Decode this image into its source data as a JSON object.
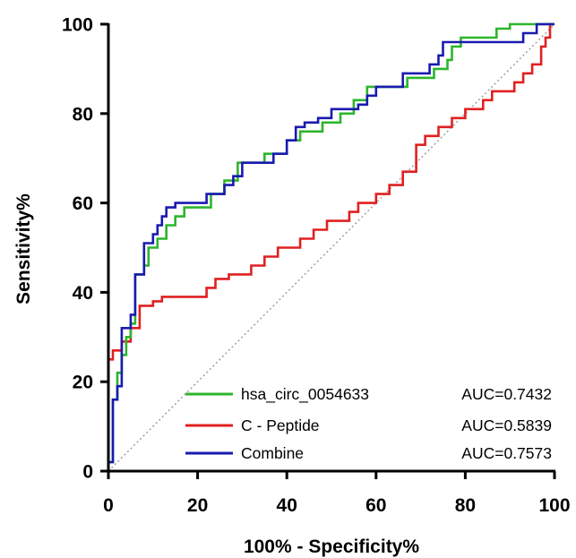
{
  "chart_data": {
    "type": "line",
    "xlabel": "100% - Specificity%",
    "ylabel": "Sensitivity%",
    "xlim": [
      0,
      100
    ],
    "ylim": [
      0,
      100
    ],
    "x_ticks": [
      "0",
      "20",
      "40",
      "60",
      "80",
      "100"
    ],
    "y_ticks": [
      "0",
      "20",
      "40",
      "60",
      "80",
      "100"
    ],
    "grid": false,
    "legend_position": "bottom-right",
    "reference_line": {
      "style": "dotted",
      "color": "#9a9a9a",
      "from": [
        0,
        0
      ],
      "to": [
        100,
        100
      ]
    },
    "series": [
      {
        "name": "hsa_circ_0054633",
        "auc_label": "AUC=0.7432",
        "color": "#2db52d",
        "points": [
          [
            0,
            0
          ],
          [
            0,
            2
          ],
          [
            1,
            2
          ],
          [
            1,
            16
          ],
          [
            2,
            16
          ],
          [
            2,
            22
          ],
          [
            3,
            22
          ],
          [
            3,
            26
          ],
          [
            4,
            26
          ],
          [
            4,
            30
          ],
          [
            5,
            30
          ],
          [
            5,
            33
          ],
          [
            6,
            33
          ],
          [
            6,
            44
          ],
          [
            8,
            44
          ],
          [
            8,
            46
          ],
          [
            9,
            46
          ],
          [
            9,
            50
          ],
          [
            11,
            50
          ],
          [
            11,
            52
          ],
          [
            13,
            52
          ],
          [
            13,
            55
          ],
          [
            15,
            55
          ],
          [
            15,
            57
          ],
          [
            17,
            57
          ],
          [
            17,
            59
          ],
          [
            23,
            59
          ],
          [
            23,
            62
          ],
          [
            26,
            62
          ],
          [
            26,
            65
          ],
          [
            29,
            65
          ],
          [
            29,
            69
          ],
          [
            35,
            69
          ],
          [
            35,
            71
          ],
          [
            40,
            71
          ],
          [
            40,
            74
          ],
          [
            43,
            74
          ],
          [
            43,
            76
          ],
          [
            48,
            76
          ],
          [
            48,
            78
          ],
          [
            52,
            78
          ],
          [
            52,
            80
          ],
          [
            55,
            80
          ],
          [
            55,
            83
          ],
          [
            58,
            83
          ],
          [
            58,
            86
          ],
          [
            67,
            86
          ],
          [
            67,
            88
          ],
          [
            73,
            88
          ],
          [
            73,
            90
          ],
          [
            76,
            90
          ],
          [
            76,
            92
          ],
          [
            77,
            92
          ],
          [
            77,
            95
          ],
          [
            79,
            95
          ],
          [
            79,
            97
          ],
          [
            87,
            97
          ],
          [
            87,
            99
          ],
          [
            90,
            99
          ],
          [
            90,
            100
          ],
          [
            100,
            100
          ]
        ]
      },
      {
        "name": "C - Peptide",
        "auc_label": "AUC=0.5839",
        "color": "#e02020",
        "points": [
          [
            0,
            0
          ],
          [
            0,
            25
          ],
          [
            1,
            25
          ],
          [
            1,
            27
          ],
          [
            3,
            27
          ],
          [
            3,
            29
          ],
          [
            5,
            29
          ],
          [
            5,
            32
          ],
          [
            7,
            32
          ],
          [
            7,
            37
          ],
          [
            10,
            37
          ],
          [
            10,
            38
          ],
          [
            12,
            38
          ],
          [
            12,
            39
          ],
          [
            22,
            39
          ],
          [
            22,
            41
          ],
          [
            24,
            41
          ],
          [
            24,
            43
          ],
          [
            27,
            43
          ],
          [
            27,
            44
          ],
          [
            32,
            44
          ],
          [
            32,
            46
          ],
          [
            35,
            46
          ],
          [
            35,
            48
          ],
          [
            38,
            48
          ],
          [
            38,
            50
          ],
          [
            43,
            50
          ],
          [
            43,
            52
          ],
          [
            46,
            52
          ],
          [
            46,
            54
          ],
          [
            49,
            54
          ],
          [
            49,
            56
          ],
          [
            54,
            56
          ],
          [
            54,
            58
          ],
          [
            56,
            58
          ],
          [
            56,
            60
          ],
          [
            60,
            60
          ],
          [
            60,
            62
          ],
          [
            63,
            62
          ],
          [
            63,
            64
          ],
          [
            66,
            64
          ],
          [
            66,
            67
          ],
          [
            69,
            67
          ],
          [
            69,
            73
          ],
          [
            71,
            73
          ],
          [
            71,
            75
          ],
          [
            74,
            75
          ],
          [
            74,
            77
          ],
          [
            77,
            77
          ],
          [
            77,
            79
          ],
          [
            80,
            79
          ],
          [
            80,
            81
          ],
          [
            84,
            81
          ],
          [
            84,
            83
          ],
          [
            86,
            83
          ],
          [
            86,
            85
          ],
          [
            91,
            85
          ],
          [
            91,
            87
          ],
          [
            93,
            87
          ],
          [
            93,
            89
          ],
          [
            95,
            89
          ],
          [
            95,
            91
          ],
          [
            97,
            91
          ],
          [
            97,
            95
          ],
          [
            98,
            95
          ],
          [
            98,
            97
          ],
          [
            99,
            97
          ],
          [
            99,
            100
          ],
          [
            100,
            100
          ]
        ]
      },
      {
        "name": "Combine",
        "auc_label": "AUC=0.7573",
        "color": "#1a1ab0",
        "points": [
          [
            0,
            0
          ],
          [
            0,
            2
          ],
          [
            1,
            2
          ],
          [
            1,
            16
          ],
          [
            2,
            16
          ],
          [
            2,
            19
          ],
          [
            3,
            19
          ],
          [
            3,
            32
          ],
          [
            5,
            32
          ],
          [
            5,
            35
          ],
          [
            6,
            35
          ],
          [
            6,
            44
          ],
          [
            8,
            44
          ],
          [
            8,
            51
          ],
          [
            10,
            51
          ],
          [
            10,
            53
          ],
          [
            11,
            53
          ],
          [
            11,
            55
          ],
          [
            12,
            55
          ],
          [
            12,
            57
          ],
          [
            13,
            57
          ],
          [
            13,
            59
          ],
          [
            15,
            59
          ],
          [
            15,
            60
          ],
          [
            22,
            60
          ],
          [
            22,
            62
          ],
          [
            26,
            62
          ],
          [
            26,
            64
          ],
          [
            28,
            64
          ],
          [
            28,
            66
          ],
          [
            30,
            66
          ],
          [
            30,
            69
          ],
          [
            37,
            69
          ],
          [
            37,
            71
          ],
          [
            40,
            71
          ],
          [
            40,
            74
          ],
          [
            42,
            74
          ],
          [
            42,
            77
          ],
          [
            44,
            77
          ],
          [
            44,
            78
          ],
          [
            47,
            78
          ],
          [
            47,
            79
          ],
          [
            50,
            79
          ],
          [
            50,
            81
          ],
          [
            56,
            81
          ],
          [
            56,
            82
          ],
          [
            58,
            82
          ],
          [
            58,
            84
          ],
          [
            60,
            84
          ],
          [
            60,
            86
          ],
          [
            66,
            86
          ],
          [
            66,
            89
          ],
          [
            72,
            89
          ],
          [
            72,
            91
          ],
          [
            74,
            91
          ],
          [
            74,
            93
          ],
          [
            75,
            93
          ],
          [
            75,
            96
          ],
          [
            93,
            96
          ],
          [
            93,
            98
          ],
          [
            96,
            98
          ],
          [
            96,
            100
          ],
          [
            100,
            100
          ]
        ]
      }
    ]
  },
  "colors": {
    "axis": "#000000",
    "reference": "#9a9a9a"
  }
}
